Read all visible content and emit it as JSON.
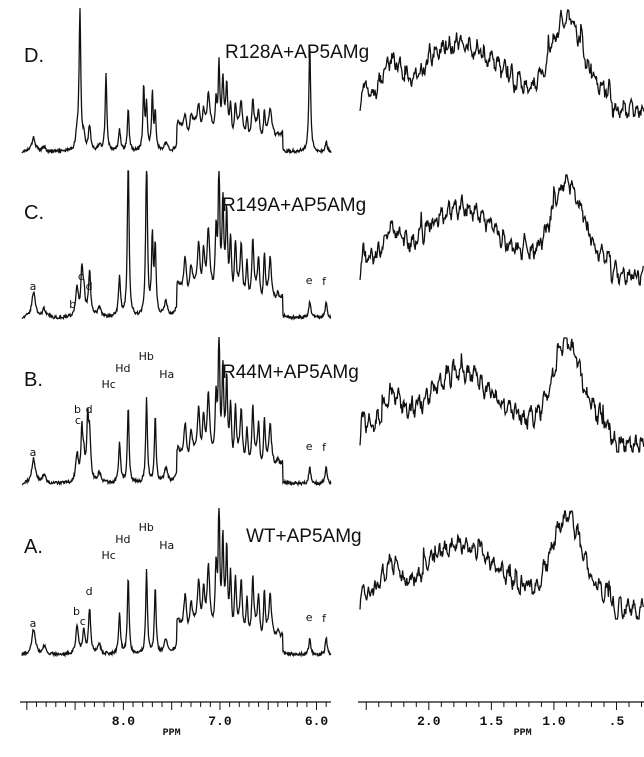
{
  "chart_data": {
    "type": "line",
    "description_free": true,
    "panels": [
      {
        "letter": "D.",
        "title": "R128A+AP5AMg",
        "peaks": []
      },
      {
        "letter": "C.",
        "title": "R149A+AP5AMg",
        "peaks": [
          {
            "ppm": 8.93,
            "label": "a"
          },
          {
            "ppm": 8.52,
            "label": "b"
          },
          {
            "ppm": 8.43,
            "label": "c"
          },
          {
            "ppm": 8.35,
            "label": "d"
          },
          {
            "ppm": 6.07,
            "label": "e"
          },
          {
            "ppm": 5.9,
            "label": "f"
          }
        ]
      },
      {
        "letter": "B.",
        "title": "R44M+AP5AMg",
        "peaks": [
          {
            "ppm": 8.93,
            "label": "a"
          },
          {
            "ppm": 8.43,
            "label": "c"
          },
          {
            "ppm": 8.45,
            "label": "b"
          },
          {
            "ppm": 8.37,
            "label": "d"
          },
          {
            "ppm": 8.04,
            "label": "Hc"
          },
          {
            "ppm": 7.95,
            "label": "Hd"
          },
          {
            "ppm": 7.76,
            "label": "Hb"
          },
          {
            "ppm": 7.67,
            "label": "Ha"
          },
          {
            "ppm": 6.07,
            "label": "e"
          },
          {
            "ppm": 5.9,
            "label": "f"
          }
        ]
      },
      {
        "letter": "A.",
        "title": "WT+AP5AMg",
        "peaks": [
          {
            "ppm": 8.93,
            "label": "a"
          },
          {
            "ppm": 8.48,
            "label": "b"
          },
          {
            "ppm": 8.41,
            "label": "c"
          },
          {
            "ppm": 8.35,
            "label": "d"
          },
          {
            "ppm": 8.04,
            "label": "Hc"
          },
          {
            "ppm": 7.95,
            "label": "Hd"
          },
          {
            "ppm": 7.76,
            "label": "Hb"
          },
          {
            "ppm": 7.67,
            "label": "Ha"
          },
          {
            "ppm": 6.07,
            "label": "e"
          },
          {
            "ppm": 5.9,
            "label": "f"
          }
        ]
      }
    ],
    "left_axis": {
      "ticks": [
        "8.0",
        "7.0",
        "6.0"
      ],
      "xlabel": "PPM",
      "range": [
        9.05,
        5.85
      ]
    },
    "right_axis": {
      "ticks": [
        "2.0",
        "1.5",
        "1.0",
        ".5"
      ],
      "xlabel": "PPM",
      "range": [
        2.55,
        0.28
      ]
    }
  }
}
